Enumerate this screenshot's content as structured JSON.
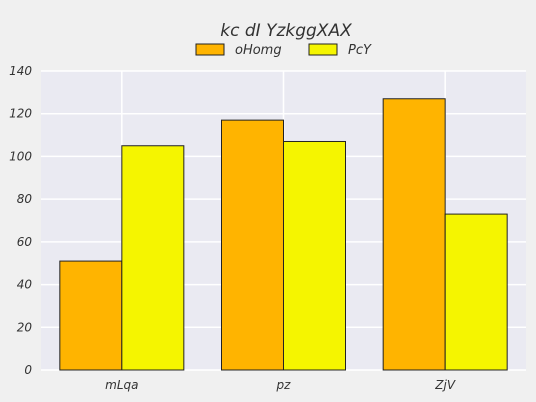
{
  "chart_data": {
    "type": "bar",
    "title": "kc dI YzkggXAX",
    "xlabel": "",
    "ylabel": "",
    "categories": [
      "mLqa",
      "pz",
      "ZjV"
    ],
    "series": [
      {
        "name": "oHomg",
        "values": [
          51,
          117,
          127
        ],
        "color": "#ffb400"
      },
      {
        "name": "PcY",
        "values": [
          105,
          107,
          73
        ],
        "color": "#f5f500"
      }
    ],
    "ylim": [
      0,
      140
    ],
    "yticks": [
      0,
      20,
      40,
      60,
      80,
      100,
      120,
      140
    ],
    "grid": true,
    "legend_position": "top-center",
    "plot_background": "#eaeaf2"
  }
}
